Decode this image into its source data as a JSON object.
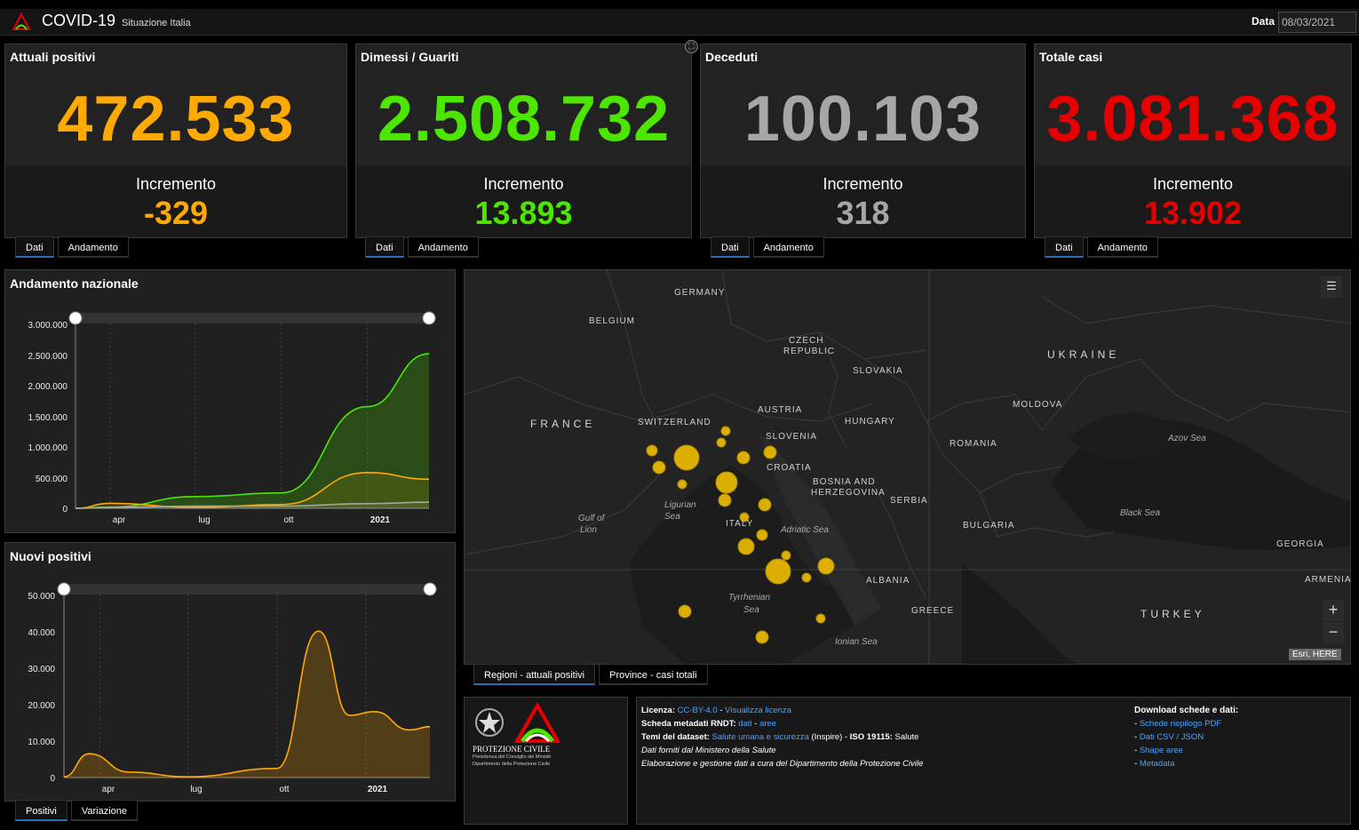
{
  "header": {
    "title": "COVID-19",
    "subtitle": "Situazione Italia",
    "date_label": "Data",
    "date_value": "08/03/2021"
  },
  "cards": [
    {
      "title": "Attuali positivi",
      "value": "472.533",
      "increment_label": "Incremento",
      "increment": "-329",
      "color": "#ffaa00",
      "tabs": [
        "Dati",
        "Andamento"
      ]
    },
    {
      "title": "Dimessi / Guariti",
      "value": "2.508.732",
      "increment_label": "Incremento",
      "increment": "13.893",
      "color": "#4ce600",
      "tabs": [
        "Dati",
        "Andamento"
      ]
    },
    {
      "title": "Deceduti",
      "value": "100.103",
      "increment_label": "Incremento",
      "increment": "318",
      "color": "#a6a6a6",
      "tabs": [
        "Dati",
        "Andamento"
      ]
    },
    {
      "title": "Totale casi",
      "value": "3.081.368",
      "increment_label": "Incremento",
      "increment": "13.902",
      "color": "#e60000",
      "tabs": [
        "Dati",
        "Andamento"
      ]
    }
  ],
  "andamento": {
    "title": "Andamento nazionale",
    "y_ticks": [
      "3.000.000",
      "2.500.000",
      "2.000.000",
      "1.500.000",
      "1.000.000",
      "500.000",
      "0"
    ],
    "x_ticks": [
      "apr",
      "lug",
      "ott",
      "2021"
    ]
  },
  "nuovi": {
    "title": "Nuovi positivi",
    "y_ticks": [
      "50.000",
      "40.000",
      "30.000",
      "20.000",
      "10.000",
      "0"
    ],
    "x_ticks": [
      "apr",
      "lug",
      "ott",
      "2021"
    ],
    "tabs": [
      "Positivi",
      "Variazione"
    ]
  },
  "chart_data": [
    {
      "type": "area",
      "title": "Andamento nazionale",
      "x": [
        "2020-02-24",
        "2020-04-01",
        "2020-07-01",
        "2020-10-01",
        "2021-01-01",
        "2021-03-08"
      ],
      "ylim": [
        0,
        3000000
      ],
      "series": [
        {
          "name": "",
          "color": "#4ce600",
          "values": [
            0,
            20000,
            190000,
            250000,
            1650000,
            2508732
          ]
        },
        {
          "name": "",
          "color": "#ffaa00",
          "values": [
            200,
            80000,
            14000,
            60000,
            580000,
            472533
          ]
        },
        {
          "name": "",
          "color": "#a6a6a6",
          "values": [
            7,
            13000,
            34800,
            36000,
            75000,
            100103
          ]
        }
      ]
    },
    {
      "type": "area",
      "title": "Nuovi positivi",
      "x": [
        "2020-02-24",
        "2020-03-21",
        "2020-05-01",
        "2020-07-01",
        "2020-10-01",
        "2020-11-13",
        "2020-12-15",
        "2021-01-10",
        "2021-02-15",
        "2021-03-08"
      ],
      "ylim": [
        0,
        50000
      ],
      "series": [
        {
          "name": "",
          "color": "#ffaa00",
          "values": [
            200,
            6500,
            1500,
            200,
            2500,
            40000,
            17000,
            18000,
            13000,
            13902
          ]
        }
      ]
    }
  ],
  "map": {
    "labels": [
      "GERMANY",
      "BELGIUM",
      "CZECH",
      "REPUBLIC",
      "SLOVAKIA",
      "UKRAINE",
      "FRANCE",
      "SWITZERLAND",
      "AUSTRIA",
      "HUNGARY",
      "MOLDOVA",
      "SLOVENIA",
      "CROATIA",
      "ROMANIA",
      "BOSNIA AND",
      "HERZEGOVINA",
      "SERBIA",
      "BULGARIA",
      "ITALY",
      "ALBANIA",
      "GREECE",
      "TURKEY",
      "GEORGIA",
      "ARMENIA"
    ],
    "seas": [
      "Ligurian",
      "Sea",
      "Gulf of",
      "Lion",
      "Adriatic Sea",
      "Tyrrhenian",
      "Sea",
      "Ionian Sea",
      "Black Sea",
      "Azov Sea"
    ],
    "attribution": "Esri, HERE",
    "zoom_in": "+",
    "zoom_out": "−",
    "tabs": [
      "Regioni - attuali positivi",
      "Province - casi totali"
    ]
  },
  "footer": {
    "org_name": "PROTEZIONE CIVILE",
    "org_line1": "Presidenza del Consiglio dei Ministri",
    "org_line2": "Dipartimento della Protezione Civile",
    "license_label": "Licenza:",
    "license_link": "CC-BY-4.0",
    "license_sep": " - ",
    "license_view": "Visualizza licenza",
    "rndt_label": "Scheda metadati RNDT:",
    "rndt_dati": "dati",
    "rndt_aree": "aree",
    "temi_label": "Temi del dataset:",
    "temi_link": "Salute umana e sicurezza",
    "temi_text": "(Inspire) -",
    "iso_label": "ISO 19115:",
    "iso_text": "Salute",
    "note1": "Dati forniti dal Ministero della Salute",
    "note2": "Elaborazione e gestione dati a cura del Dipartimento della Protezione Civile",
    "download_title": "Download schede e dati:",
    "downloads": [
      "Schede riepilogo PDF",
      "Dati CSV / JSON",
      "Shape aree",
      "Metadata"
    ]
  }
}
